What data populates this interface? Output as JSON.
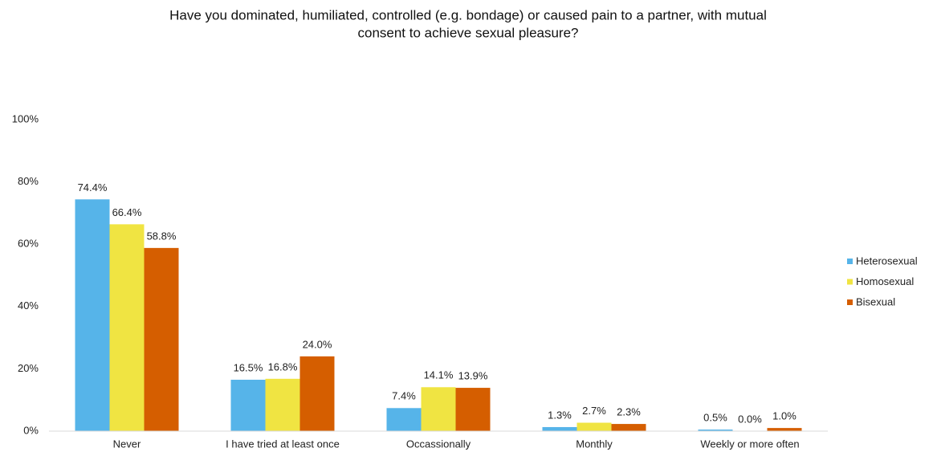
{
  "chart_data": {
    "type": "bar",
    "title": [
      "Have you dominated, humiliated, controlled (e.g. bondage) or caused pain to a partner, with mutual",
      "consent to achieve sexual pleasure?"
    ],
    "categories": [
      "Never",
      "I have tried at least once",
      "Occassionally",
      "Monthly",
      "Weekly or more often"
    ],
    "series": [
      {
        "name": "Heterosexual",
        "color": "#56b4e9",
        "values": [
          74.4,
          16.5,
          7.4,
          1.3,
          0.5
        ],
        "value_labels": [
          "74.4%",
          "16.5%",
          "7.4%",
          "1.3%",
          "0.5%"
        ]
      },
      {
        "name": "Homosexual",
        "color": "#f0e442",
        "values": [
          66.4,
          16.8,
          14.1,
          2.7,
          0.0
        ],
        "value_labels": [
          "66.4%",
          "16.8%",
          "14.1%",
          "2.7%",
          "0.0%"
        ]
      },
      {
        "name": "Bisexual",
        "color": "#d55e00",
        "values": [
          58.8,
          24.0,
          13.9,
          2.3,
          1.0
        ],
        "value_labels": [
          "58.8%",
          "24.0%",
          "13.9%",
          "2.3%",
          "1.0%"
        ]
      }
    ],
    "ylim": [
      0,
      100
    ],
    "yticks": [
      {
        "value": 0,
        "label": "0%"
      },
      {
        "value": 20,
        "label": "20%"
      },
      {
        "value": 40,
        "label": "40%"
      },
      {
        "value": 60,
        "label": "60%"
      },
      {
        "value": 80,
        "label": "80%"
      },
      {
        "value": 100,
        "label": "100%"
      }
    ],
    "grid": false,
    "legend": "right"
  }
}
